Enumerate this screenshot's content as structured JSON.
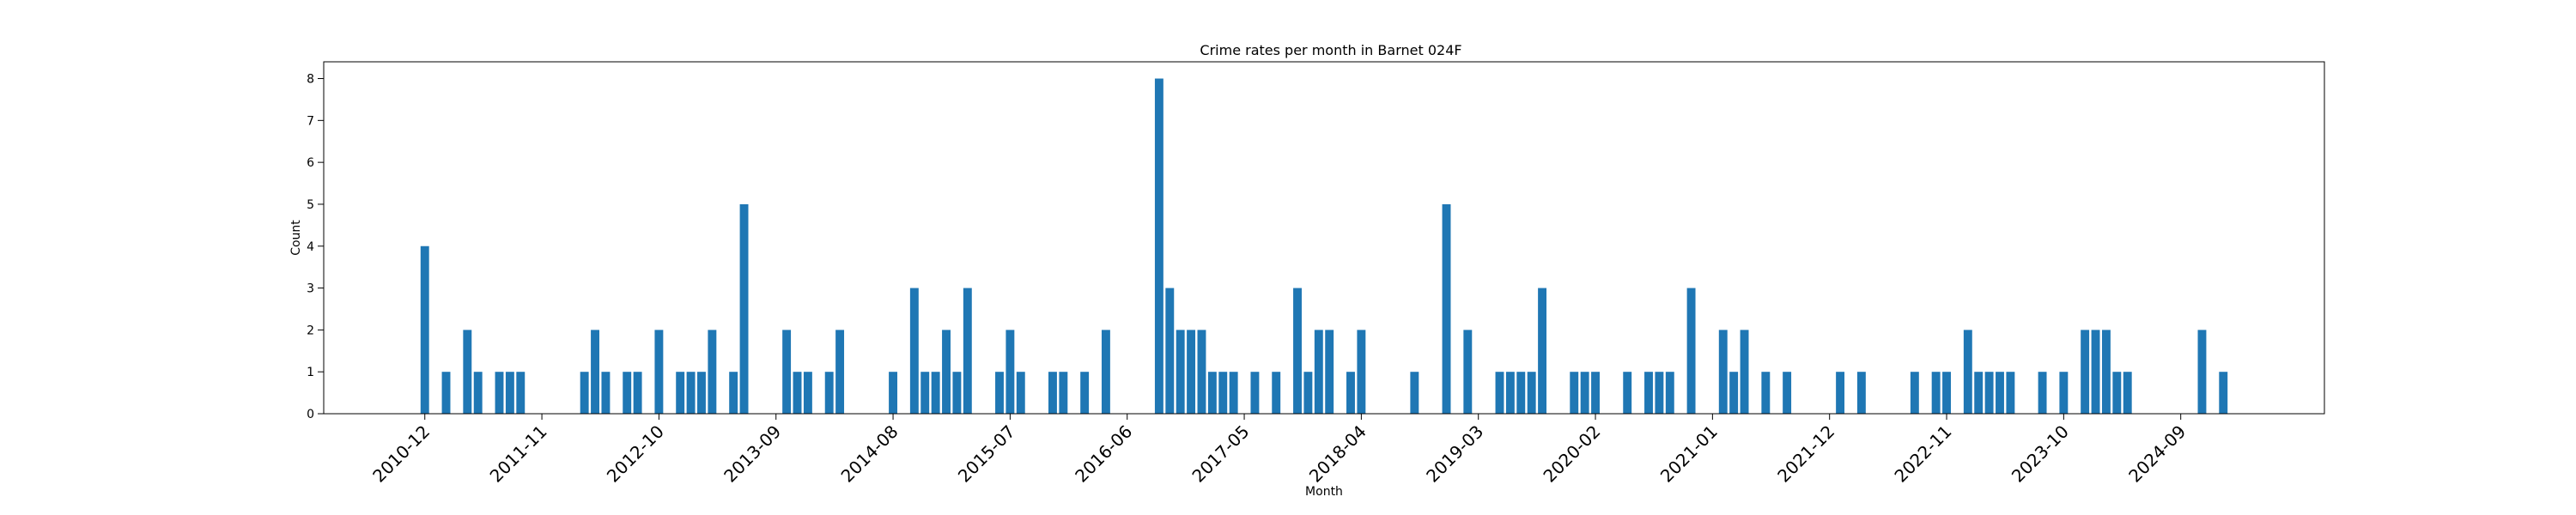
{
  "chart_data": {
    "type": "bar",
    "title": "Crime rates per month in Barnet 024F",
    "xlabel": "Month",
    "ylabel": "Count",
    "ylim": [
      0,
      8.4
    ],
    "yticks": [
      0,
      1,
      2,
      3,
      4,
      5,
      6,
      7,
      8
    ],
    "bar_color": "#1f77b4",
    "xticks": [
      "2010-12",
      "2011-11",
      "2012-10",
      "2013-09",
      "2014-08",
      "2015-07",
      "2016-06",
      "2017-05",
      "2018-04",
      "2019-03",
      "2020-02",
      "2021-01",
      "2021-12",
      "2022-11",
      "2023-10",
      "2024-09"
    ],
    "categories": [
      "2010-12",
      "2011-02",
      "2011-04",
      "2011-05",
      "2011-07",
      "2011-08",
      "2011-09",
      "2012-03",
      "2012-04",
      "2012-05",
      "2012-07",
      "2012-08",
      "2012-10",
      "2012-12",
      "2013-01",
      "2013-02",
      "2013-03",
      "2013-05",
      "2013-06",
      "2013-10",
      "2013-11",
      "2013-12",
      "2014-02",
      "2014-03",
      "2014-08",
      "2014-10",
      "2014-11",
      "2014-12",
      "2015-01",
      "2015-02",
      "2015-03",
      "2015-06",
      "2015-07",
      "2015-08",
      "2015-11",
      "2015-12",
      "2016-02",
      "2016-04",
      "2016-09",
      "2016-10",
      "2016-11",
      "2016-12",
      "2017-01",
      "2017-02",
      "2017-03",
      "2017-04",
      "2017-06",
      "2017-08",
      "2017-10",
      "2017-11",
      "2017-12",
      "2018-01",
      "2018-03",
      "2018-04",
      "2018-09",
      "2018-12",
      "2019-02",
      "2019-05",
      "2019-06",
      "2019-07",
      "2019-08",
      "2019-09",
      "2019-12",
      "2020-01",
      "2020-02",
      "2020-05",
      "2020-07",
      "2020-08",
      "2020-09",
      "2020-11",
      "2021-02",
      "2021-03",
      "2021-04",
      "2021-06",
      "2021-08",
      "2022-01",
      "2022-03",
      "2022-08",
      "2022-10",
      "2022-11",
      "2023-01",
      "2023-02",
      "2023-03",
      "2023-04",
      "2023-05",
      "2023-08",
      "2023-10",
      "2023-12",
      "2024-01",
      "2024-02",
      "2024-03",
      "2024-04",
      "2024-11",
      "2025-01"
    ],
    "values": [
      4,
      1,
      2,
      1,
      1,
      1,
      1,
      1,
      2,
      1,
      1,
      1,
      2,
      1,
      1,
      1,
      2,
      1,
      5,
      2,
      1,
      1,
      1,
      2,
      1,
      3,
      1,
      1,
      2,
      1,
      3,
      1,
      2,
      1,
      1,
      1,
      1,
      2,
      8,
      3,
      2,
      2,
      2,
      1,
      1,
      1,
      1,
      1,
      3,
      1,
      2,
      2,
      1,
      2,
      1,
      5,
      2,
      1,
      1,
      1,
      1,
      3,
      1,
      1,
      1,
      1,
      1,
      1,
      1,
      3,
      2,
      1,
      2,
      1,
      1,
      1,
      1,
      1,
      1,
      1,
      2,
      1,
      1,
      1,
      1,
      1,
      1,
      2,
      2,
      2,
      1,
      1,
      2,
      1
    ],
    "x_range": [
      "2010-03",
      "2025-10"
    ],
    "grid": false,
    "legend": false
  }
}
